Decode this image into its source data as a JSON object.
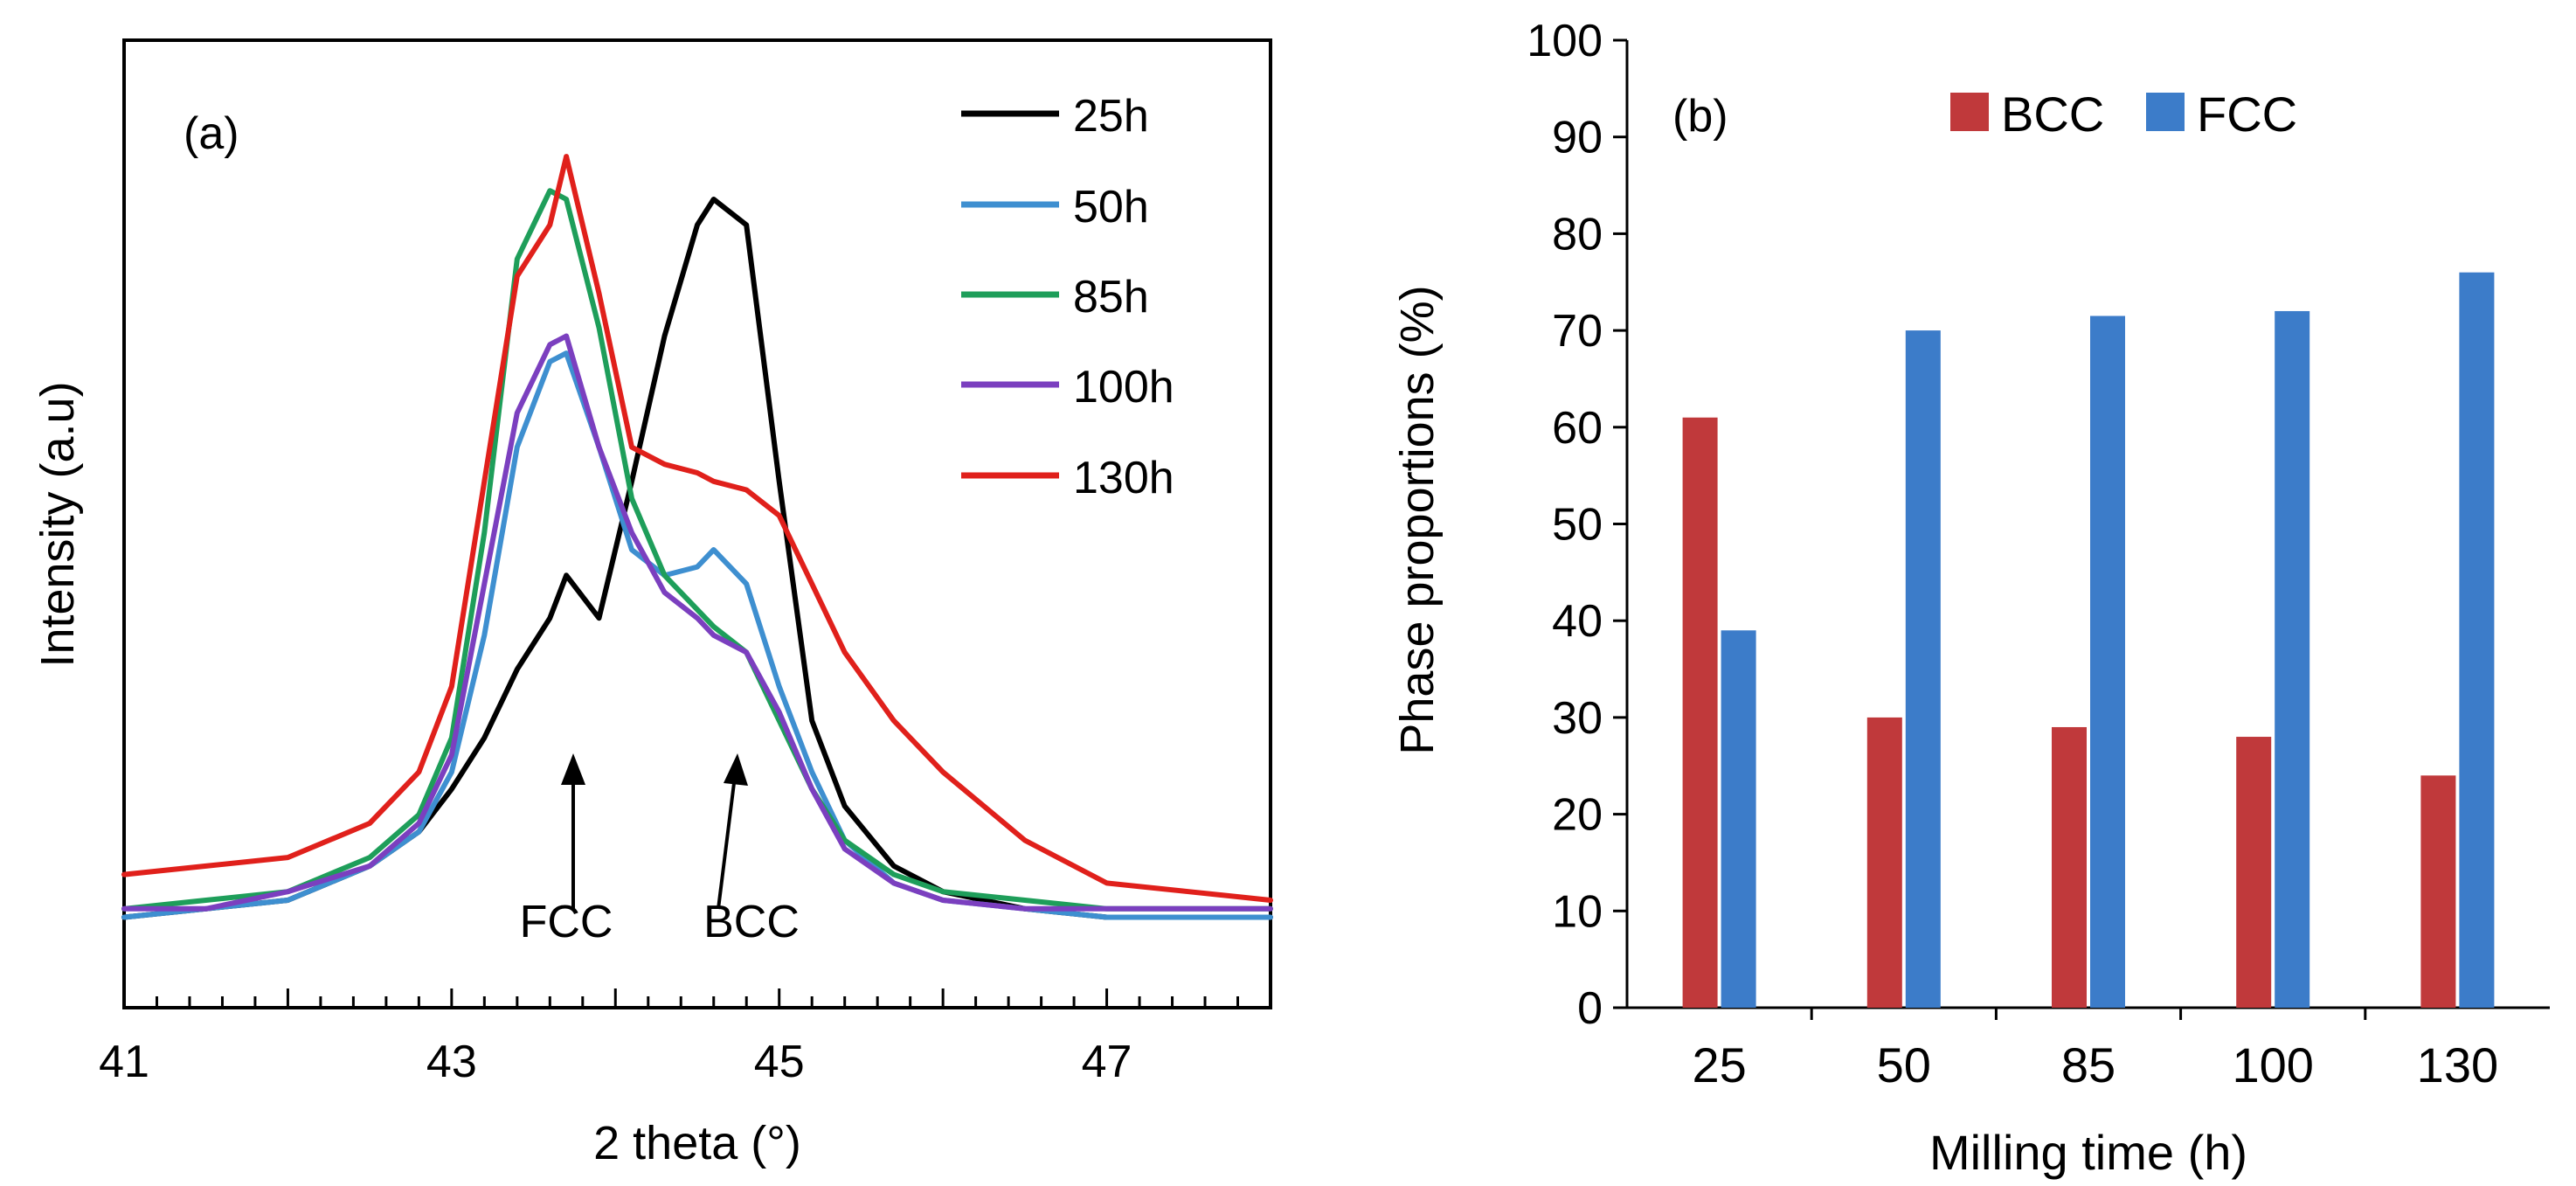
{
  "chart_data": [
    {
      "type": "line",
      "panel_label": "(a)",
      "xlabel": "2 theta (°)",
      "ylabel": "Intensity (a.u)",
      "xlim": [
        41,
        48
      ],
      "ylim": [
        0,
        100
      ],
      "x_ticks": [
        "41",
        "43",
        "45",
        "47"
      ],
      "annotations": [
        {
          "text": "FCC",
          "x": 43.7
        },
        {
          "text": "BCC",
          "x": 44.7
        }
      ],
      "series": [
        {
          "name": "25h",
          "color": "#000000",
          "x": [
            41.0,
            41.5,
            42.0,
            42.5,
            42.8,
            43.0,
            43.2,
            43.4,
            43.6,
            43.7,
            43.9,
            44.1,
            44.3,
            44.5,
            44.6,
            44.8,
            45.0,
            45.2,
            45.4,
            45.7,
            46.0,
            46.5,
            47.0,
            47.5,
            48.0
          ],
          "values": [
            7,
            8,
            9,
            13,
            17,
            22,
            28,
            36,
            42,
            47,
            42,
            58,
            75,
            88,
            91,
            88,
            58,
            30,
            20,
            13,
            10,
            8,
            7,
            7,
            7
          ]
        },
        {
          "name": "50h",
          "color": "#3E8FD0",
          "x": [
            41.0,
            41.5,
            42.0,
            42.5,
            42.8,
            43.0,
            43.2,
            43.4,
            43.6,
            43.7,
            43.9,
            44.1,
            44.3,
            44.5,
            44.6,
            44.8,
            45.0,
            45.2,
            45.4,
            45.7,
            46.0,
            46.5,
            47.0,
            47.5,
            48.0
          ],
          "values": [
            7,
            8,
            9,
            13,
            17,
            24,
            40,
            62,
            72,
            73,
            62,
            50,
            47,
            48,
            50,
            46,
            34,
            24,
            16,
            11,
            9,
            8,
            7,
            7,
            7
          ]
        },
        {
          "name": "85h",
          "color": "#1E9E5A",
          "x": [
            41.0,
            41.5,
            42.0,
            42.5,
            42.8,
            43.0,
            43.2,
            43.4,
            43.6,
            43.7,
            43.9,
            44.1,
            44.3,
            44.5,
            44.6,
            44.8,
            45.0,
            45.2,
            45.4,
            45.7,
            46.0,
            46.5,
            47.0,
            47.5,
            48.0
          ],
          "values": [
            8,
            9,
            10,
            14,
            19,
            28,
            52,
            84,
            92,
            91,
            76,
            56,
            47,
            43,
            41,
            38,
            30,
            22,
            16,
            12,
            10,
            9,
            8,
            8,
            8
          ]
        },
        {
          "name": "100h",
          "color": "#7B3FBF",
          "x": [
            41.0,
            41.5,
            42.0,
            42.5,
            42.8,
            43.0,
            43.2,
            43.4,
            43.6,
            43.7,
            43.9,
            44.1,
            44.3,
            44.5,
            44.6,
            44.8,
            45.0,
            45.2,
            45.4,
            45.7,
            46.0,
            46.5,
            47.0,
            47.5,
            48.0
          ],
          "values": [
            8,
            8,
            10,
            13,
            18,
            26,
            46,
            66,
            74,
            75,
            62,
            52,
            45,
            42,
            40,
            38,
            31,
            22,
            15,
            11,
            9,
            8,
            8,
            8,
            8
          ]
        },
        {
          "name": "130h",
          "color": "#E0201B",
          "x": [
            41.0,
            41.5,
            42.0,
            42.5,
            42.8,
            43.0,
            43.2,
            43.4,
            43.6,
            43.7,
            43.9,
            44.1,
            44.3,
            44.5,
            44.6,
            44.8,
            45.0,
            45.2,
            45.4,
            45.7,
            46.0,
            46.5,
            47.0,
            47.5,
            48.0
          ],
          "values": [
            12,
            13,
            14,
            18,
            24,
            34,
            58,
            82,
            88,
            96,
            80,
            62,
            60,
            59,
            58,
            57,
            54,
            46,
            38,
            30,
            24,
            16,
            11,
            10,
            9
          ]
        }
      ]
    },
    {
      "type": "bar",
      "panel_label": "(b)",
      "xlabel": "Milling time (h)",
      "ylabel": "Phase proportions (%)",
      "ylim": [
        0,
        100
      ],
      "y_ticks": [
        "0",
        "10",
        "20",
        "30",
        "40",
        "50",
        "60",
        "70",
        "80",
        "90",
        "100"
      ],
      "categories": [
        "25",
        "50",
        "85",
        "100",
        "130"
      ],
      "series": [
        {
          "name": "BCC",
          "color": "#C0393B",
          "values": [
            61,
            30,
            29,
            28,
            24
          ]
        },
        {
          "name": "FCC",
          "color": "#3C7CC9",
          "values": [
            39,
            70,
            71.5,
            72,
            76
          ]
        }
      ]
    }
  ]
}
